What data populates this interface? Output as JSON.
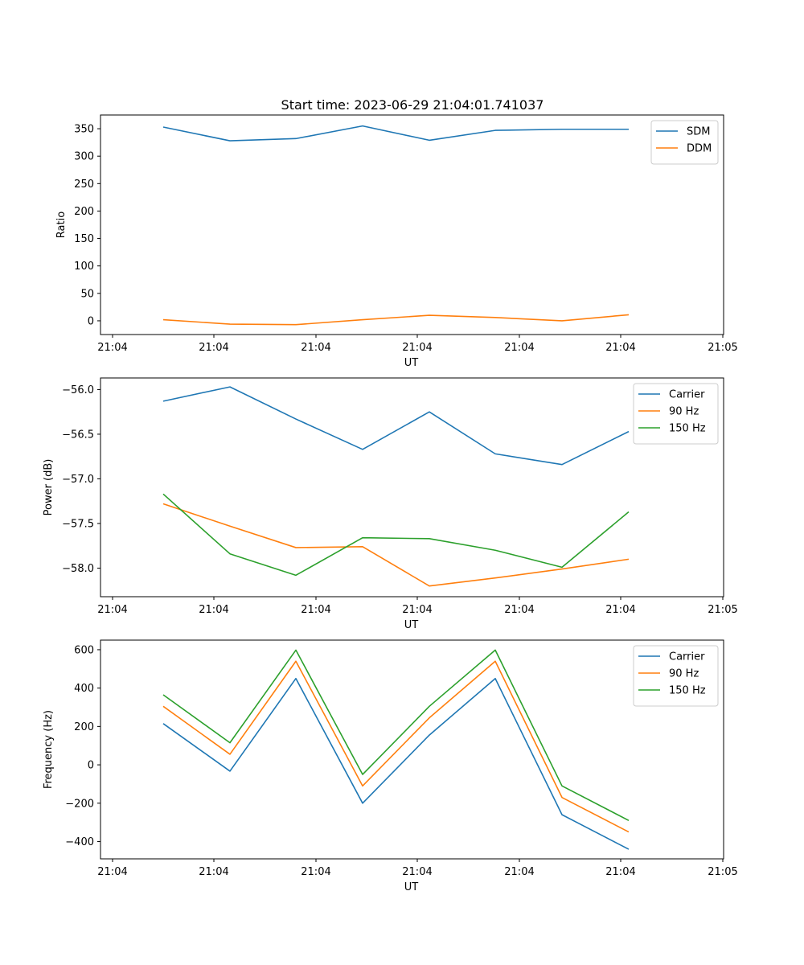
{
  "title": "Start time: 2023-06-29 21:04:01.741037",
  "chart_data": [
    {
      "type": "line",
      "xlabel": "UT",
      "ylabel": "Ratio",
      "x_tick_labels": [
        "21:04",
        "21:04",
        "21:04",
        "21:04",
        "21:04",
        "21:04",
        "21:05"
      ],
      "y_ticks": [
        0,
        50,
        100,
        150,
        200,
        250,
        300,
        350
      ],
      "ylim": [
        -25,
        375
      ],
      "legend_position": "top-right",
      "grid": false,
      "series": [
        {
          "name": "SDM",
          "color": "#1f77b4",
          "values": [
            353,
            328,
            332,
            355,
            329,
            347,
            349,
            349
          ]
        },
        {
          "name": "DDM",
          "color": "#ff7f0e",
          "values": [
            2,
            -6,
            -7,
            2,
            10,
            6,
            0,
            11
          ]
        }
      ]
    },
    {
      "type": "line",
      "xlabel": "UT",
      "ylabel": "Power (dB)",
      "x_tick_labels": [
        "21:04",
        "21:04",
        "21:04",
        "21:04",
        "21:04",
        "21:04",
        "21:05"
      ],
      "y_ticks": [
        -58.0,
        -57.5,
        -57.0,
        -56.5,
        -56.0
      ],
      "y_tick_labels": [
        "−58.0",
        "−57.5",
        "−57.0",
        "−56.5",
        "−56.0"
      ],
      "ylim": [
        -58.32,
        -55.87
      ],
      "legend_position": "top-right",
      "grid": false,
      "series": [
        {
          "name": "Carrier",
          "color": "#1f77b4",
          "values": [
            -56.13,
            -55.97,
            -56.33,
            -56.67,
            -56.25,
            -56.72,
            -56.84,
            -56.47
          ]
        },
        {
          "name": "90 Hz",
          "color": "#ff7f0e",
          "values": [
            -57.28,
            -57.53,
            -57.77,
            -57.76,
            -58.2,
            -58.11,
            -58.01,
            -57.9
          ]
        },
        {
          "name": "150 Hz",
          "color": "#2ca02c",
          "values": [
            -57.17,
            -57.84,
            -58.08,
            -57.66,
            -57.67,
            -57.8,
            -57.99,
            -57.37
          ]
        }
      ]
    },
    {
      "type": "line",
      "xlabel": "UT",
      "ylabel": "Frequency (Hz)",
      "x_tick_labels": [
        "21:04",
        "21:04",
        "21:04",
        "21:04",
        "21:04",
        "21:04",
        "21:05"
      ],
      "y_ticks": [
        -400,
        -200,
        0,
        200,
        400,
        600
      ],
      "y_tick_labels": [
        "−400",
        "−200",
        "0",
        "200",
        "400",
        "600"
      ],
      "ylim": [
        -490,
        650
      ],
      "legend_position": "top-right",
      "grid": false,
      "series": [
        {
          "name": "Carrier",
          "color": "#1f77b4",
          "values": [
            215,
            -33,
            450,
            -200,
            155,
            450,
            -260,
            -440
          ]
        },
        {
          "name": "90 Hz",
          "color": "#ff7f0e",
          "values": [
            305,
            55,
            540,
            -110,
            245,
            540,
            -170,
            -350
          ]
        },
        {
          "name": "150 Hz",
          "color": "#2ca02c",
          "values": [
            365,
            115,
            598,
            -50,
            305,
            598,
            -110,
            -290
          ]
        }
      ]
    }
  ]
}
